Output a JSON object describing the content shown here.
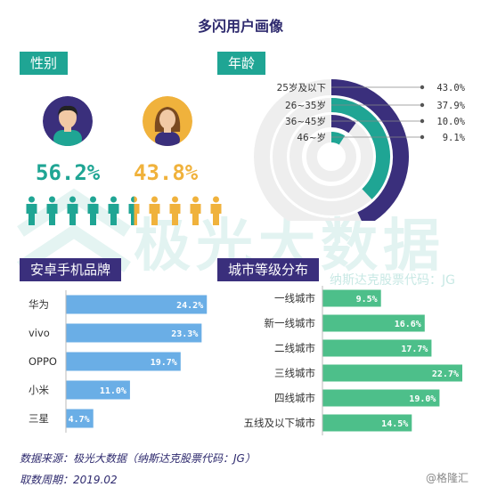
{
  "page": {
    "title": "多闪用户画像",
    "watermark_main": "极光大数据",
    "watermark_sub": "纳斯达克股票代码：JG",
    "logo_text": "@格隆汇"
  },
  "sections": {
    "gender_label": "性别",
    "age_label": "年龄",
    "brand_label": "安卓手机品牌",
    "city_label": "城市等级分布"
  },
  "footer": {
    "source": "数据来源：极光大数据（纳斯达克股票代码：JG）",
    "period": "取数周期：2019.02"
  },
  "colors": {
    "teal": "#1fa594",
    "purple": "#3a2f7c",
    "orange": "#f0b23c",
    "blue_bar": "#6aaee6",
    "green_bar": "#4dbf8a",
    "ring_bg": "#eeeeee"
  },
  "chart_data": [
    {
      "id": "gender",
      "type": "pictograph",
      "categories": [
        "男",
        "女"
      ],
      "values": [
        56.2,
        43.8
      ],
      "labels": [
        "56.2%",
        "43.8%"
      ],
      "icon_count": 10,
      "male_icons": 5.5
    },
    {
      "id": "age",
      "type": "radial-bar",
      "categories": [
        "25岁及以下",
        "26~35岁",
        "36~45岁",
        "46~岁"
      ],
      "values": [
        43.0,
        37.9,
        10.0,
        9.1
      ],
      "labels": [
        "43.0%",
        "37.9%",
        "10.0%",
        "9.1%"
      ],
      "colors": [
        "#3a2f7c",
        "#1fa594",
        "#3a2f7c",
        "#1fa594"
      ]
    },
    {
      "id": "android_brand",
      "type": "bar",
      "orientation": "horizontal",
      "categories": [
        "华为",
        "vivo",
        "OPPO",
        "小米",
        "三星"
      ],
      "values": [
        24.2,
        23.3,
        19.7,
        11.0,
        4.7
      ],
      "labels": [
        "24.2%",
        "23.3%",
        "19.7%",
        "11.0%",
        "4.7%"
      ],
      "xlim": [
        0,
        26
      ]
    },
    {
      "id": "city_tier",
      "type": "bar",
      "orientation": "horizontal",
      "categories": [
        "一线城市",
        "新一线城市",
        "二线城市",
        "三线城市",
        "四线城市",
        "五线及以下城市"
      ],
      "values": [
        9.5,
        16.6,
        17.7,
        22.7,
        19.0,
        14.5
      ],
      "labels": [
        "9.5%",
        "16.6%",
        "17.7%",
        "22.7%",
        "19.0%",
        "14.5%"
      ],
      "xlim": [
        0,
        24
      ]
    }
  ]
}
